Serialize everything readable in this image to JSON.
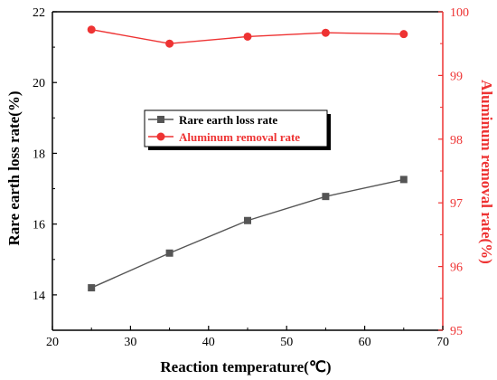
{
  "chart_data": {
    "type": "line",
    "x": [
      25,
      35,
      45,
      55,
      65
    ],
    "xlabel": "Reaction temperature(℃)",
    "xlim": [
      20,
      70
    ],
    "xticks": [
      20,
      30,
      40,
      50,
      60,
      70
    ],
    "ylabel": "Rare earth loss rate(%)",
    "ylim": [
      13,
      22
    ],
    "yticks": [
      14,
      16,
      18,
      20,
      22
    ],
    "y2label": "Aluminum removal rate(%)",
    "y2lim": [
      95,
      100
    ],
    "y2ticks": [
      95,
      96,
      97,
      98,
      99,
      100
    ],
    "legend": "center-left",
    "grid": false,
    "series": [
      {
        "name": "Rare earth loss rate",
        "axis": "left",
        "marker": "square",
        "color": "#555555",
        "values": [
          14.2,
          15.18,
          16.1,
          16.78,
          17.26
        ]
      },
      {
        "name": "Aluminum removal rate",
        "axis": "right",
        "marker": "circle",
        "color": "#ee3333",
        "values": [
          99.72,
          99.5,
          99.61,
          99.67,
          99.65
        ]
      }
    ]
  }
}
